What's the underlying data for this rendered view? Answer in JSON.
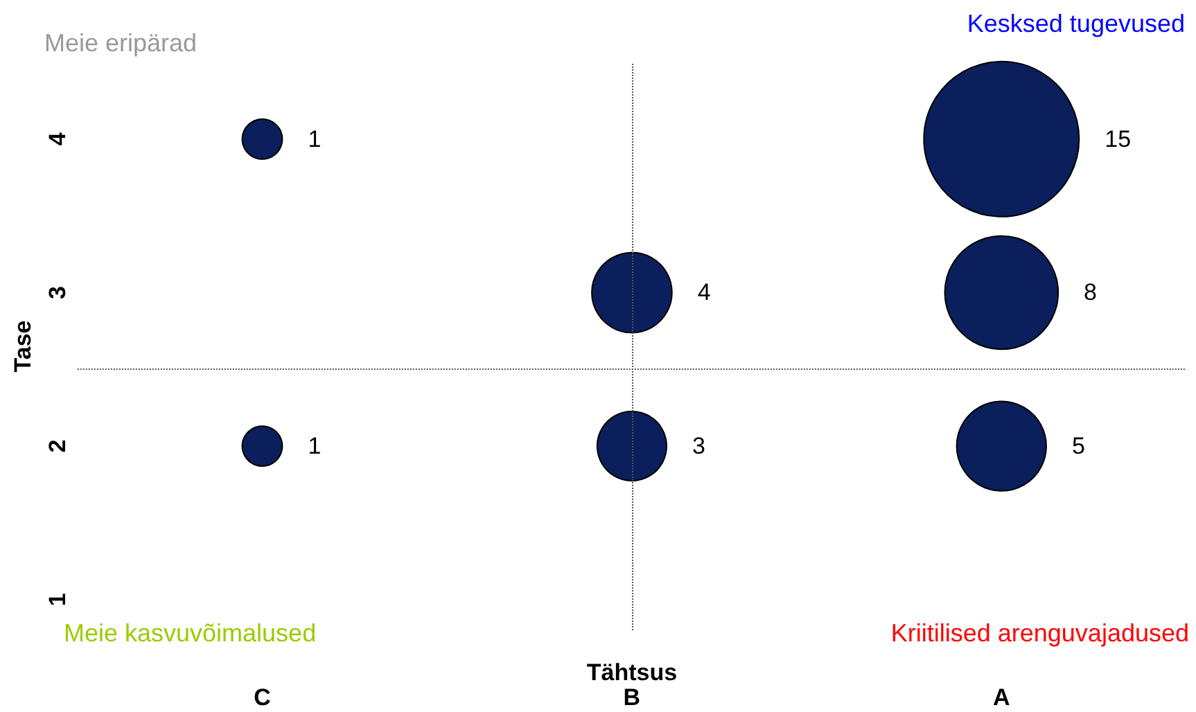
{
  "chart_data": {
    "type": "bubble",
    "categories": [
      "C",
      "B",
      "A"
    ],
    "xlabel": "Tähtsus",
    "ylabel": "Tase",
    "ylim": [
      0.8,
      4.5
    ],
    "yticks": [
      1,
      2,
      3,
      4
    ],
    "series": [
      {
        "color": "#0a1f5c",
        "x": [
          "C",
          "C",
          "B",
          "B",
          "A",
          "A",
          "A"
        ],
        "values": [
          4,
          2,
          3,
          2,
          4,
          3,
          2
        ],
        "sizes": [
          1,
          1,
          4,
          3,
          15,
          8,
          5
        ],
        "value_labels": [
          "1",
          "1",
          "4",
          "3",
          "15",
          "8",
          "5"
        ]
      }
    ],
    "ref_lines": [
      {
        "axis": "x",
        "value": "B",
        "line_style": "dotted",
        "color": "#555555"
      },
      {
        "axis": "y",
        "value": 2.5,
        "line_style": "dotted",
        "color": "#555555"
      }
    ],
    "annotations": [
      "Meie eripärad",
      "Kesksed tugevused",
      "Meie kasvuvõimalused",
      "Kriitilised arenguvajadused"
    ],
    "grid": false,
    "marker": "circle"
  }
}
